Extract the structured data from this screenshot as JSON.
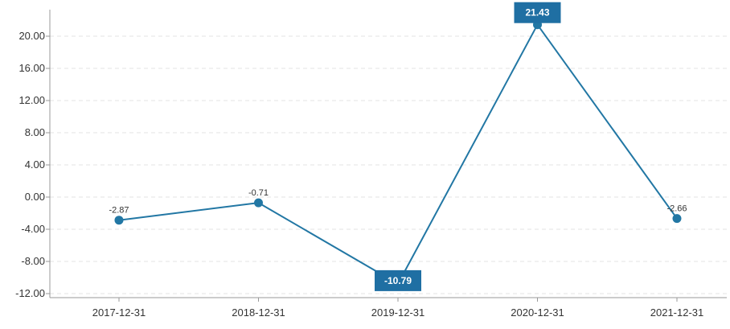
{
  "chart_data": {
    "type": "line",
    "categories": [
      "2017-12-31",
      "2018-12-31",
      "2019-12-31",
      "2020-12-31",
      "2021-12-31"
    ],
    "series": [
      {
        "values": [
          -2.87,
          -0.71,
          -10.79,
          21.43,
          -2.66
        ],
        "labels": [
          "-2.87",
          "-0.71",
          "-10.79",
          "21.43",
          "-2.66"
        ]
      }
    ],
    "highlight": {
      "max_label": "21.43",
      "min_label": "-10.79"
    },
    "y_ticks": [
      "20.00",
      "16.00",
      "12.00",
      "8.00",
      "4.00",
      "0.00",
      "-4.00",
      "-8.00",
      "-12.00"
    ],
    "ylim": [
      -12,
      22
    ],
    "grid": true,
    "title": "",
    "xlabel": "",
    "ylabel": "",
    "colors": {
      "line": "#2277a4",
      "badge": "#1f6fa3",
      "grid": "#e3e3e3",
      "axis": "#999999"
    }
  }
}
